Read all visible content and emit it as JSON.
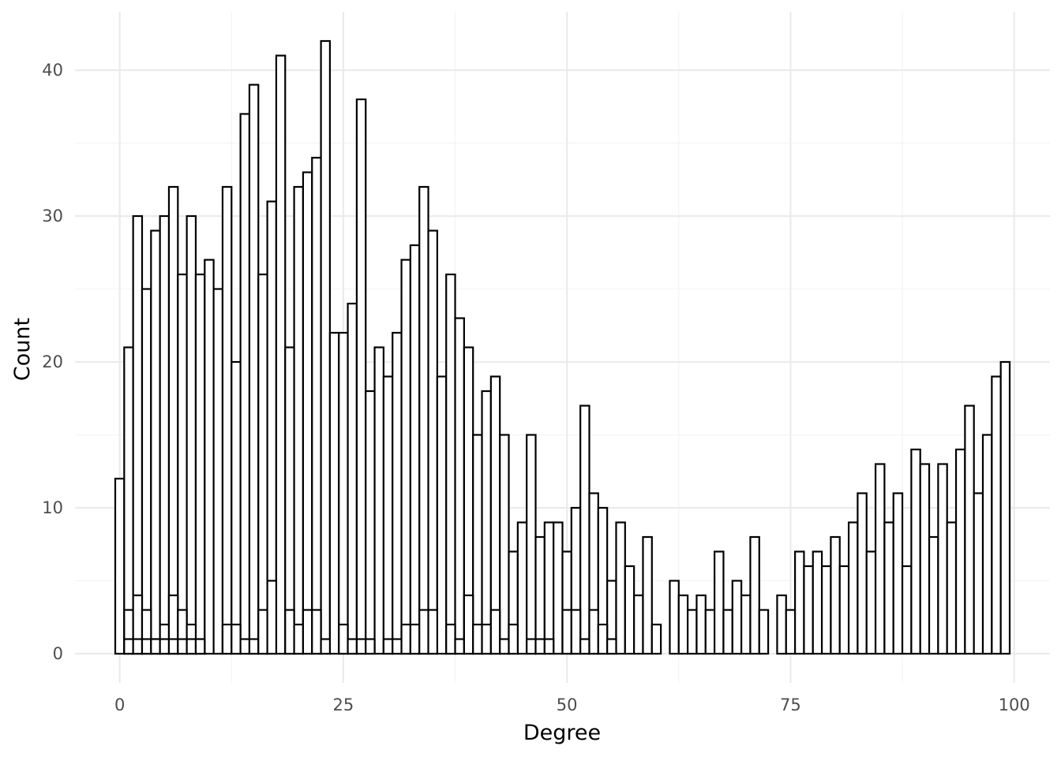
{
  "chart_data": {
    "type": "bar",
    "subtype": "histogram",
    "title": "",
    "xlabel": "Degree",
    "ylabel": "Count",
    "xlim": [
      -5,
      104
    ],
    "ylim": [
      -2,
      44
    ],
    "x_ticks": [
      0,
      25,
      50,
      75,
      100
    ],
    "x_tick_labels": [
      "0",
      "25",
      "50",
      "75",
      "100"
    ],
    "y_ticks": [
      0,
      10,
      20,
      30,
      40
    ],
    "y_tick_labels": [
      "0",
      "10",
      "20",
      "30",
      "40"
    ],
    "grid": true,
    "bar_fill": "#ffffff",
    "bar_outline": "#000000",
    "bin_width": 1,
    "series": [
      {
        "x": [
          0,
          1,
          2,
          3,
          4,
          5,
          6,
          7,
          8,
          9,
          10,
          11,
          12,
          13,
          14,
          15,
          16,
          17,
          18,
          19,
          20,
          21,
          22,
          23,
          24,
          25,
          26,
          27,
          28,
          29,
          30,
          31,
          32,
          33,
          34,
          35,
          36,
          37,
          38,
          39,
          40,
          41,
          42,
          43,
          44,
          45,
          46,
          47,
          48,
          49,
          50,
          51,
          52,
          53,
          54,
          55,
          56,
          57,
          58,
          59,
          60,
          62,
          63,
          64,
          65,
          66,
          67,
          68,
          69,
          70,
          71,
          72,
          74,
          75,
          76,
          77,
          78,
          79,
          80,
          81,
          82,
          83,
          84,
          85,
          86,
          87,
          88,
          89,
          90,
          91,
          92,
          93,
          94,
          95,
          96,
          97,
          98,
          99
        ],
        "values": [
          12,
          21,
          30,
          25,
          29,
          30,
          32,
          26,
          30,
          26,
          27,
          25,
          32,
          20,
          37,
          39,
          26,
          31,
          41,
          21,
          32,
          33,
          34,
          42,
          22,
          22,
          24,
          38,
          18,
          21,
          19,
          22,
          27,
          28,
          32,
          29,
          19,
          26,
          23,
          21,
          15,
          18,
          19,
          15,
          7,
          9,
          15,
          8,
          9,
          9,
          7,
          10,
          17,
          11,
          10,
          5,
          9,
          6,
          4,
          8,
          2,
          5,
          4,
          3,
          4,
          3,
          7,
          3,
          5,
          4,
          8,
          3,
          4,
          3,
          7,
          6,
          7,
          6,
          8,
          6,
          9,
          11,
          7,
          13,
          9,
          11,
          6,
          14,
          13,
          8,
          13,
          9,
          14,
          17,
          11,
          15,
          19,
          20
        ]
      },
      {
        "x": [
          1,
          2,
          3,
          4,
          5,
          6,
          7,
          8,
          9,
          12,
          13,
          14,
          15,
          16,
          17,
          19,
          20,
          21,
          22,
          23,
          25,
          26,
          27,
          28,
          30,
          31,
          32,
          33,
          34,
          35,
          37,
          38,
          39,
          40,
          41,
          42,
          43,
          44,
          46,
          47,
          48,
          50,
          51,
          52,
          53,
          54,
          55
        ],
        "values": [
          3,
          4,
          3,
          1,
          2,
          4,
          3,
          2,
          1,
          2,
          2,
          1,
          1,
          3,
          5,
          3,
          2,
          3,
          3,
          1,
          2,
          1,
          1,
          1,
          1,
          1,
          2,
          2,
          3,
          3,
          2,
          1,
          4,
          2,
          2,
          3,
          1,
          2,
          1,
          1,
          1,
          3,
          3,
          1,
          3,
          2,
          1
        ]
      },
      {
        "x": [
          1,
          2,
          3,
          4,
          5,
          6,
          7,
          8,
          9
        ],
        "values": [
          1,
          1,
          1,
          1,
          1,
          1,
          1,
          1,
          1
        ]
      }
    ]
  }
}
